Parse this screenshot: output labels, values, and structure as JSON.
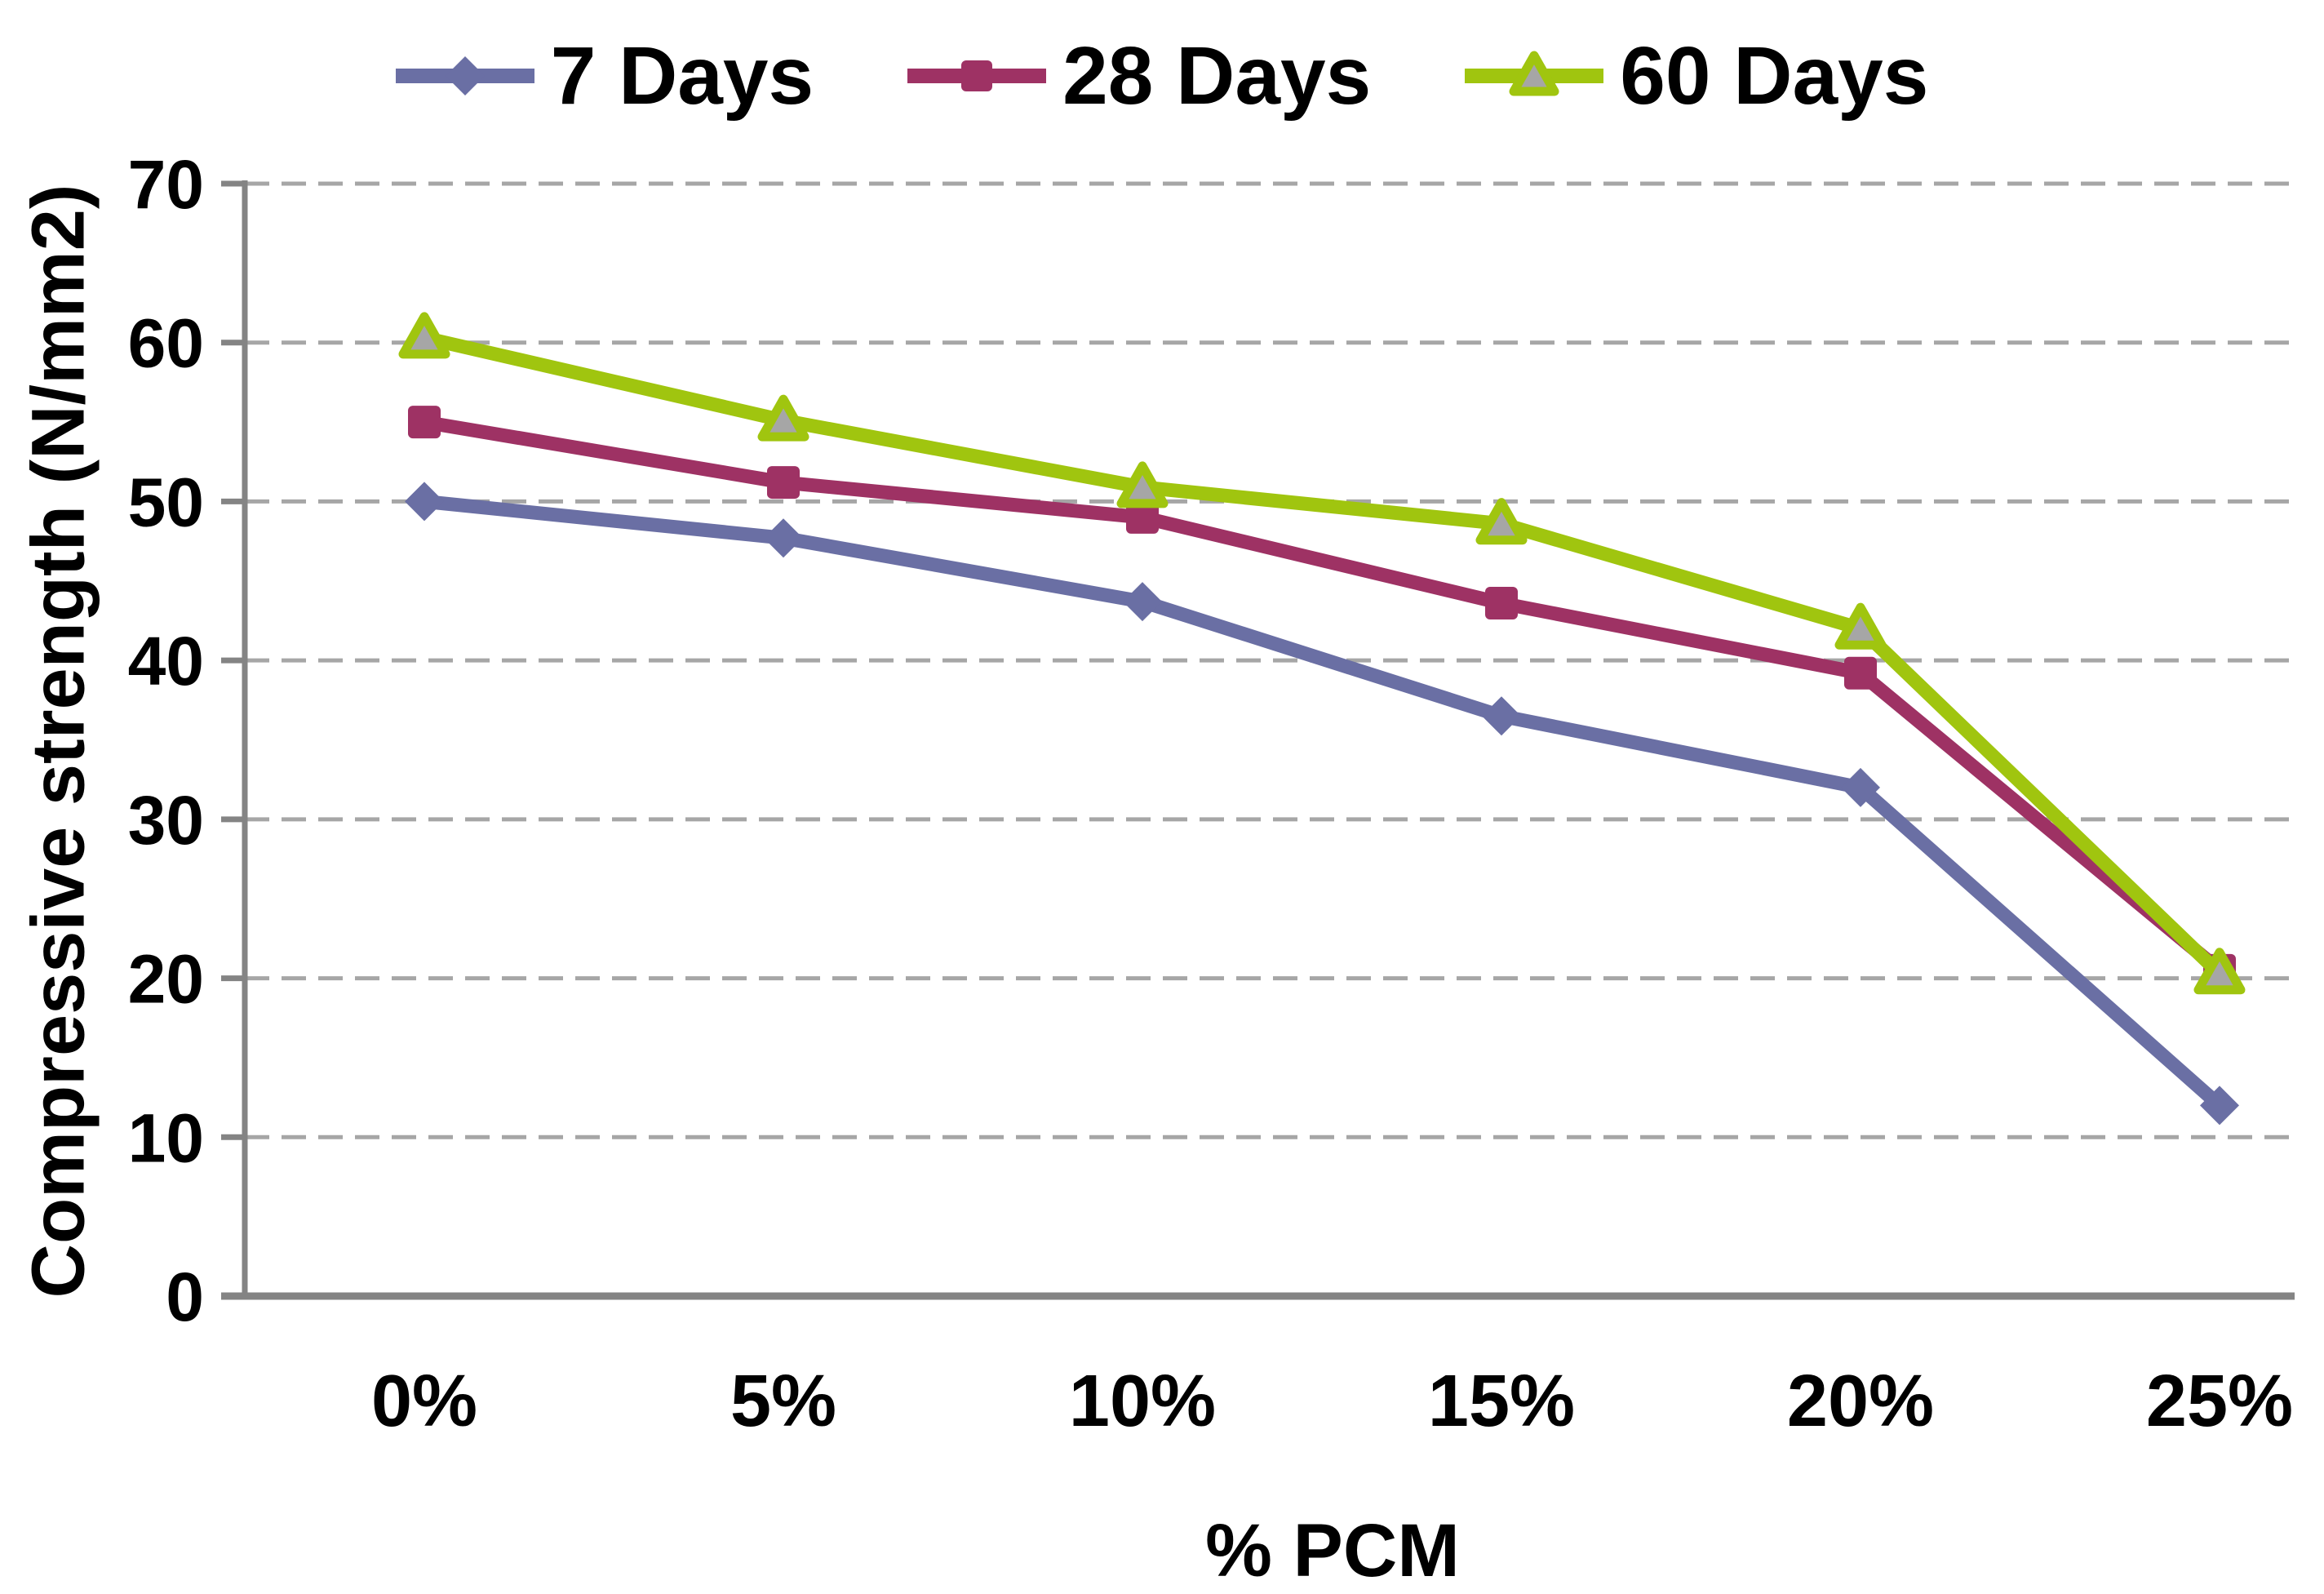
{
  "chart_data": {
    "type": "line",
    "title": "",
    "xlabel": "% PCM",
    "ylabel": "Compressive strength (N/mm2)",
    "categories": [
      "0%",
      "5%",
      "10%",
      "15%",
      "20%",
      "25%"
    ],
    "series": [
      {
        "name": "7 Days",
        "marker": "diamond",
        "color": "#6A6FA4",
        "marker_fill": "#6A6FA4",
        "values": [
          50.0,
          47.7,
          43.7,
          36.5,
          32.0,
          12.0
        ]
      },
      {
        "name": "28 Days",
        "marker": "square",
        "color": "#9E3264",
        "marker_fill": "#9E3264",
        "values": [
          55.0,
          51.2,
          49.0,
          43.6,
          39.2,
          20.5
        ]
      },
      {
        "name": "60 Days",
        "marker": "triangle",
        "color": "#A0C50F",
        "marker_fill": "#A6A6A6",
        "values": [
          60.3,
          55.1,
          50.9,
          48.6,
          42.0,
          20.3
        ]
      }
    ],
    "ylim": [
      0,
      70
    ],
    "ytick_step": 10,
    "yticks": [
      0,
      10,
      20,
      30,
      40,
      50,
      60,
      70
    ],
    "grid": "horizontal-dashed",
    "legend_position": "top",
    "colors": {
      "axis": "#848484",
      "gridline": "#A6A6A6",
      "text": "#000000",
      "background": "#FFFFFF"
    }
  }
}
